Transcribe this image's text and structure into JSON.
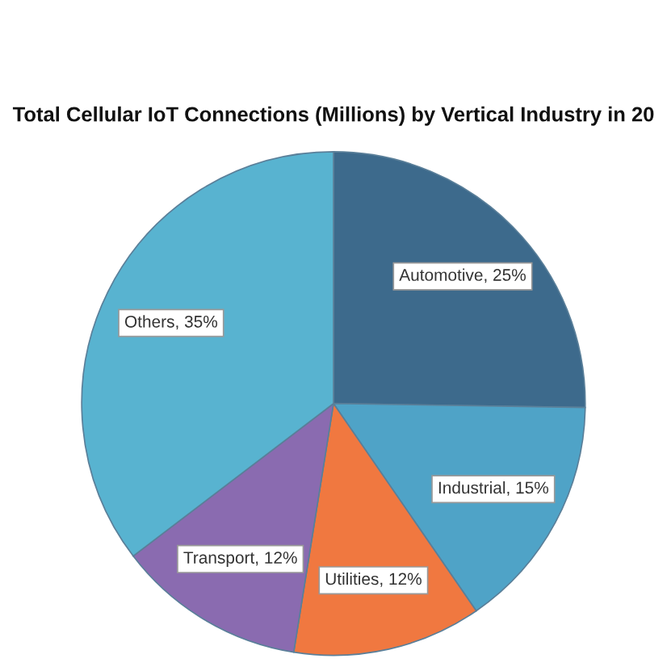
{
  "chart_data": {
    "type": "pie",
    "title": "Total Cellular IoT Connections (Millions) by Vertical Industry in 20",
    "categories": [
      "Automotive",
      "Industrial",
      "Utilities",
      "Transport",
      "Others"
    ],
    "values": [
      25,
      15,
      12,
      12,
      35
    ],
    "colors": [
      "#3d6a8c",
      "#4fa3c7",
      "#f07840",
      "#8a6bb0",
      "#58b3d0"
    ],
    "value_labels": [
      ", 25%",
      ", 15%",
      ", 12%",
      ", 12%",
      ", 35%"
    ]
  }
}
